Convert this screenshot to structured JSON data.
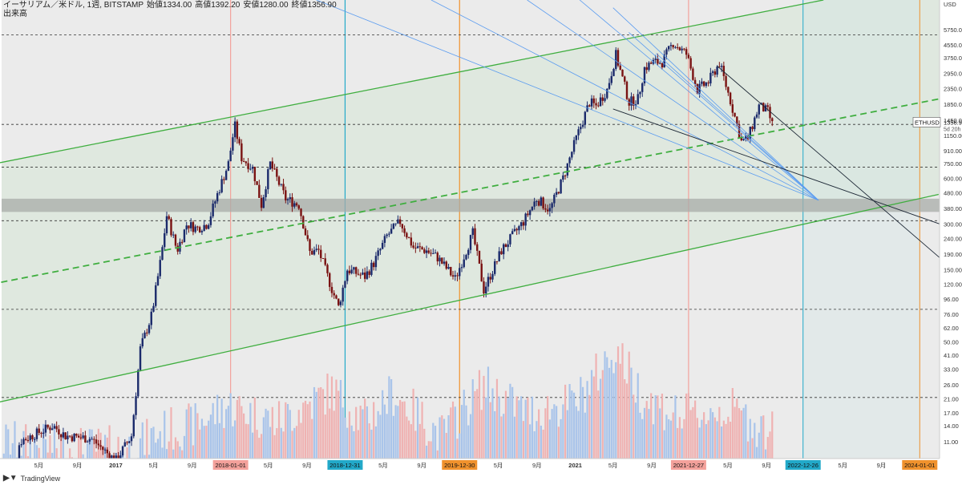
{
  "header": {
    "title": "イーサリアム／米ドル, 1週, BITSTAMP",
    "open": "始値1334.00",
    "high": "高値1392.20",
    "low": "安値1280.00",
    "close": "終値1356.90",
    "volume_label": "出来高"
  },
  "footer": {
    "brand": "TradingView",
    "logo_icon": "tradingview-logo-icon"
  },
  "colors": {
    "background": "#ebebeb",
    "channel_green": "#3fae3f",
    "fan_blue": "#5b9cf0",
    "fan_dark": "#1c2735",
    "vline_red": "#f3a19b",
    "vline_cyan": "#22a9c9",
    "vline_orange": "#f0922d",
    "up_candle": "#1b2a6b",
    "down_candle": "#7a1212",
    "vol_up": "#a9c4ea",
    "vol_down": "#efb2b2",
    "zone_gray": "#a8aca8"
  },
  "chart_data": {
    "type": "candlestick",
    "title": "イーサリアム／米ドル, 1週, BITSTAMP",
    "y_scale": "log",
    "y_unit": "USD",
    "ylim": [
      8.5,
      9000
    ],
    "y_ticks": [
      "USD",
      "5750.00",
      "4550.00",
      "3750.00",
      "2950.00",
      "2350.00",
      "1850.00",
      "1450.00",
      "1150.00",
      "910.00",
      "750.00",
      "600.00",
      "480.00",
      "380.00",
      "300.00",
      "240.00",
      "190.00",
      "150.00",
      "120.00",
      "96.00",
      "76.00",
      "62.00",
      "50.00",
      "41.00",
      "33.00",
      "26.00",
      "21.00",
      "17.00",
      "14.00",
      "11.00"
    ],
    "x_ticks": [
      "5月",
      "9月",
      "2017",
      "5月",
      "9月",
      "2018-01-01",
      "5月",
      "9月",
      "2018-12-31",
      "5月",
      "9月",
      "2019-12-30",
      "5月",
      "9月",
      "2021",
      "5月",
      "9月",
      "2021-12-27",
      "5月",
      "9月",
      "2022-12-26",
      "5月",
      "9月",
      "2024-01-01"
    ],
    "xlim": [
      "2016-01-04",
      "2024-03-04"
    ],
    "last_price": {
      "symbol": "ETHUSD",
      "price": "1356.90",
      "countdown": "5d 20h"
    },
    "close_path": [
      [
        "2016-01-04",
        1.0
      ],
      [
        "2016-03-01",
        11
      ],
      [
        "2016-06-15",
        14
      ],
      [
        "2016-07-25",
        12.0
      ],
      [
        "2016-10-15",
        11.5
      ],
      [
        "2017-01-01",
        8.2
      ],
      [
        "2017-02-20",
        12
      ],
      [
        "2017-03-20",
        45
      ],
      [
        "2017-04-25",
        75
      ],
      [
        "2017-05-25",
        180
      ],
      [
        "2017-06-12",
        340
      ],
      [
        "2017-07-15",
        200
      ],
      [
        "2017-08-15",
        300
      ],
      [
        "2017-09-15",
        280
      ],
      [
        "2017-10-20",
        300
      ],
      [
        "2017-11-20",
        470
      ],
      [
        "2017-12-25",
        750
      ],
      [
        "2018-01-14",
        1350
      ],
      [
        "2018-02-05",
        820
      ],
      [
        "2018-03-12",
        700
      ],
      [
        "2018-04-09",
        400
      ],
      [
        "2018-05-07",
        750
      ],
      [
        "2018-06-25",
        440
      ],
      [
        "2018-08-06",
        400
      ],
      [
        "2018-09-10",
        195
      ],
      [
        "2018-10-08",
        200
      ],
      [
        "2018-11-20",
        110
      ],
      [
        "2018-12-10",
        85
      ],
      [
        "2019-01-07",
        150
      ],
      [
        "2019-03-04",
        135
      ],
      [
        "2019-04-01",
        165
      ],
      [
        "2019-05-13",
        250
      ],
      [
        "2019-06-24",
        310
      ],
      [
        "2019-08-05",
        210
      ],
      [
        "2019-09-16",
        200
      ],
      [
        "2019-10-21",
        180
      ],
      [
        "2019-12-16",
        130
      ],
      [
        "2020-02-10",
        260
      ],
      [
        "2020-03-16",
        110
      ],
      [
        "2020-05-11",
        200
      ],
      [
        "2020-07-20",
        310
      ],
      [
        "2020-08-31",
        440
      ],
      [
        "2020-10-12",
        370
      ],
      [
        "2020-11-23",
        600
      ],
      [
        "2021-01-04",
        1100
      ],
      [
        "2021-02-15",
        1900
      ],
      [
        "2021-03-08",
        1800
      ],
      [
        "2021-04-12",
        2300
      ],
      [
        "2021-05-10",
        3900
      ],
      [
        "2021-06-21",
        1900
      ],
      [
        "2021-07-19",
        2000
      ],
      [
        "2021-08-09",
        3200
      ],
      [
        "2021-09-06",
        3500
      ],
      [
        "2021-10-04",
        3500
      ],
      [
        "2021-11-08",
        4700
      ],
      [
        "2021-12-20",
        3950
      ],
      [
        "2022-01-24",
        2300
      ],
      [
        "2022-02-28",
        2600
      ],
      [
        "2022-04-04",
        3450
      ],
      [
        "2022-05-09",
        1950
      ],
      [
        "2022-06-13",
        1050
      ],
      [
        "2022-07-04",
        1100
      ],
      [
        "2022-08-08",
        1800
      ],
      [
        "2022-09-05",
        1650
      ],
      [
        "2022-09-19",
        1356.9
      ]
    ],
    "volume_path": [
      [
        "2016-01-04",
        11
      ],
      [
        "2016-08-01",
        10
      ],
      [
        "2017-03-01",
        10
      ],
      [
        "2017-06-01",
        13
      ],
      [
        "2017-09-01",
        14
      ],
      [
        "2017-12-25",
        19
      ],
      [
        "2018-03-01",
        17
      ],
      [
        "2018-06-01",
        15
      ],
      [
        "2018-11-20",
        24
      ],
      [
        "2019-03-01",
        15
      ],
      [
        "2019-06-01",
        23
      ],
      [
        "2019-11-01",
        12
      ],
      [
        "2020-03-16",
        26
      ],
      [
        "2020-08-01",
        17
      ],
      [
        "2021-01-04",
        20
      ],
      [
        "2021-05-10",
        45
      ],
      [
        "2021-08-01",
        22
      ],
      [
        "2021-12-01",
        16
      ],
      [
        "2022-05-09",
        18
      ],
      [
        "2022-09-19",
        12.5
      ]
    ],
    "vertical_lines": [
      {
        "date": "2018-01-01",
        "label": "2018-01-01",
        "style": "red"
      },
      {
        "date": "2018-12-31",
        "label": "2018-12-31",
        "style": "cyan"
      },
      {
        "date": "2019-12-30",
        "label": "2019-12-30",
        "style": "orange"
      },
      {
        "date": "2021-12-27",
        "label": "2021-12-27",
        "style": "red"
      },
      {
        "date": "2022-12-26",
        "label": "2022-12-26",
        "style": "cyan"
      },
      {
        "date": "2024-01-01",
        "label": "2024-01-01",
        "style": "orange"
      }
    ],
    "horizontal_levels": [
      5300,
      1360,
      710,
      315,
      82,
      21.5
    ],
    "resistance_zone": [
      360,
      440
    ],
    "channel": {
      "upper": [
        [
          "2015-12-01",
          740
        ],
        [
          "2023-03-01",
          9000
        ]
      ],
      "lower": [
        [
          "2015-12-01",
          19.5
        ],
        [
          "2024-03-01",
          470
        ]
      ],
      "mid_dashed": [
        [
          "2015-12-01",
          120
        ],
        [
          "2024-03-01",
          2000
        ]
      ]
    },
    "fan_apex": [
      "2023-02-13",
      430
    ],
    "fan_blue_starts": [
      [
        "2018-10-01",
        9000
      ],
      [
        "2019-10-01",
        9000
      ],
      [
        "2020-08-01",
        9000
      ],
      [
        "2021-01-15",
        9000
      ],
      [
        "2021-05-01",
        8000
      ],
      [
        "2021-06-20",
        5500
      ],
      [
        "2021-09-15",
        4000
      ]
    ],
    "fan_dark": [
      [
        [
          "2021-05-01",
          1720
        ],
        [
          "2024-03-04",
          300
        ]
      ],
      [
        [
          "2022-03-28",
          3300
        ],
        [
          "2024-03-04",
          180
        ]
      ]
    ]
  }
}
